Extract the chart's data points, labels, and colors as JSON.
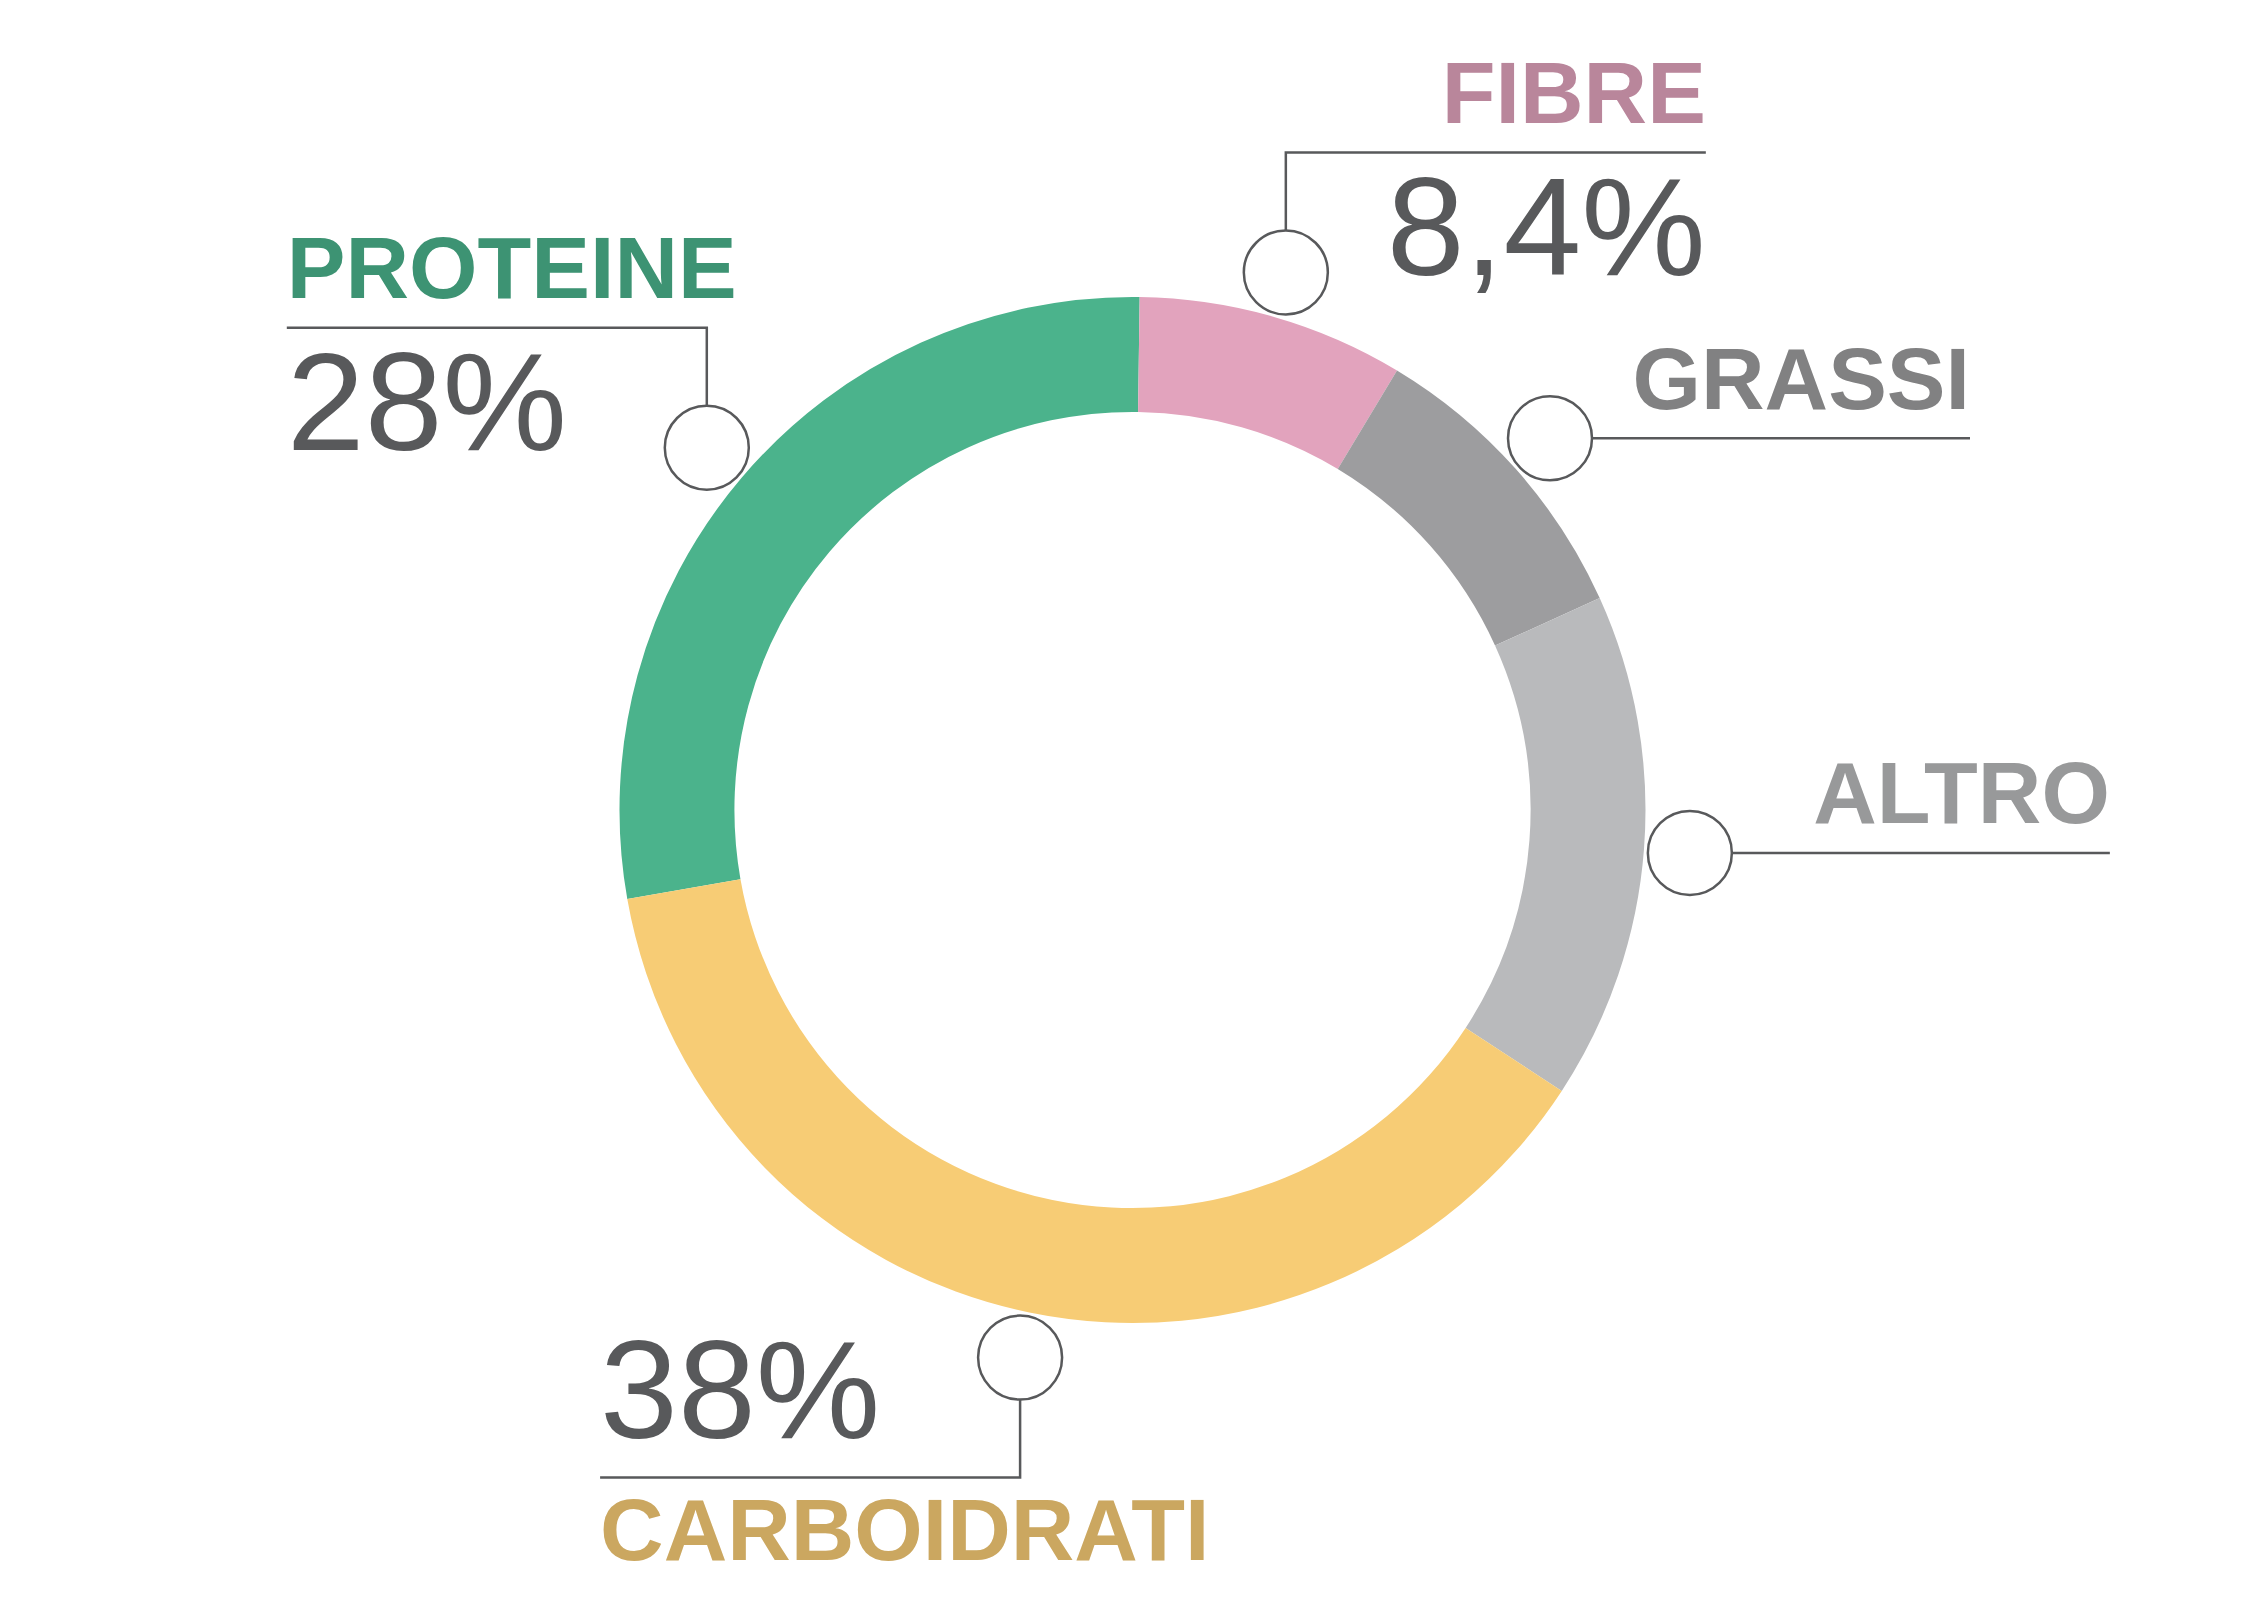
{
  "chart_data": {
    "type": "donut",
    "categories": [
      "PROTEINE",
      "FIBRE",
      "GRASSI",
      "ALTRO",
      "CARBOIDRATI"
    ],
    "values": [
      28,
      8.4,
      9.6,
      16,
      38
    ],
    "colors": [
      "#4bb38c",
      "#e2a3bd",
      "#9d9d9f",
      "#b9babc",
      "#f7cc75"
    ],
    "value_labels": [
      "28%",
      "8,4%",
      null,
      null,
      "38%"
    ]
  }
}
